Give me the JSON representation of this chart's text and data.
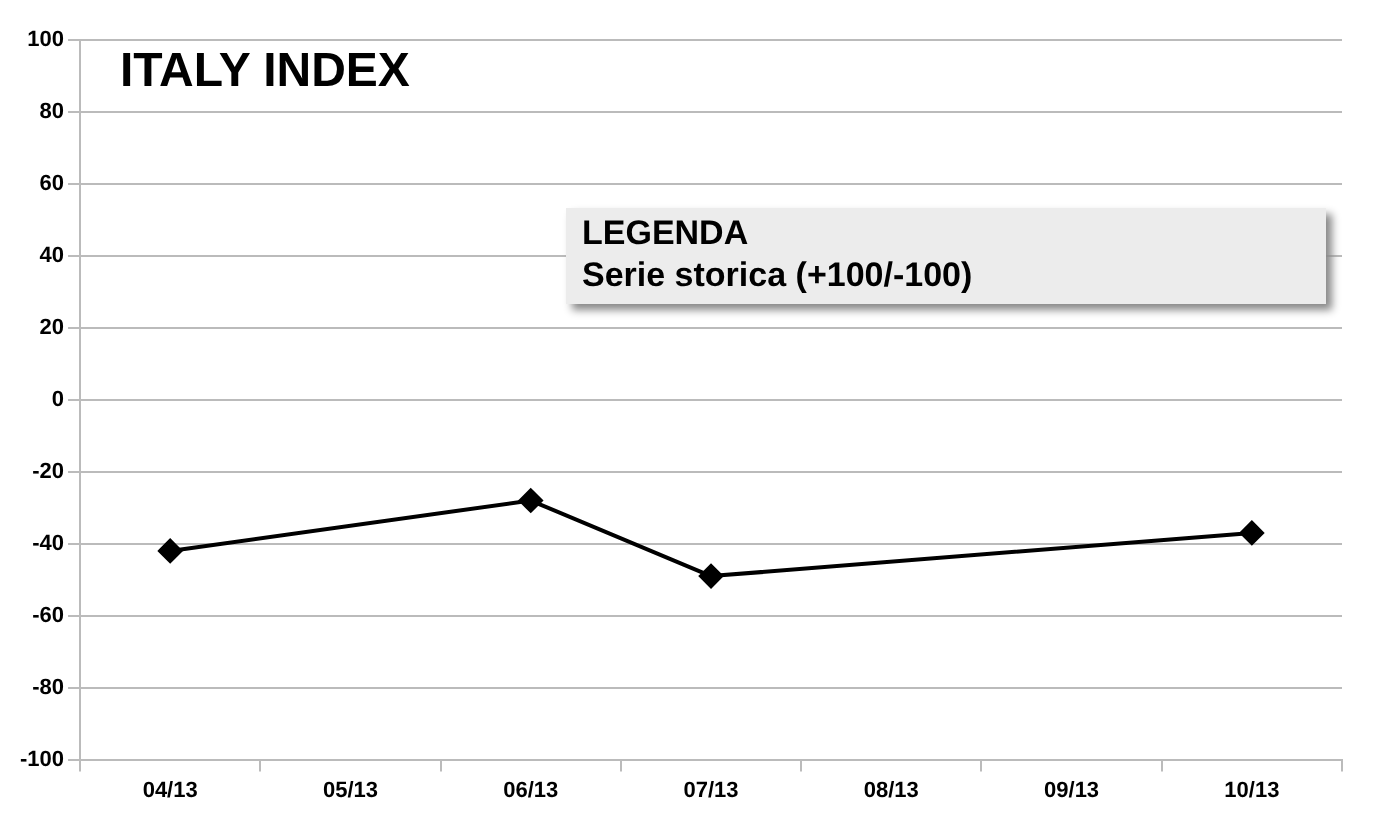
{
  "chart_data": {
    "type": "line",
    "title": "ITALY INDEX",
    "legend_title": "LEGENDA",
    "categories": [
      "04/13",
      "05/13",
      "06/13",
      "07/13",
      "08/13",
      "09/13",
      "10/13"
    ],
    "series": [
      {
        "name": "Serie storica (+100/-100)",
        "color": "#000000",
        "values": [
          -42,
          null,
          -28,
          -49,
          null,
          null,
          -37
        ]
      }
    ],
    "ylim": [
      -100,
      100
    ],
    "yticks": [
      -100,
      -80,
      -60,
      -40,
      -20,
      0,
      20,
      40,
      60,
      80,
      100
    ],
    "grid": "y",
    "legend": "top",
    "marker": "diamond",
    "line_style": "solid"
  }
}
